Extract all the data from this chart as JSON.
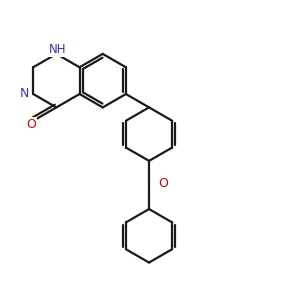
{
  "background_color": "#ffffff",
  "bond_color": "#1a1a1a",
  "nitrogen_color": "#3333bb",
  "oxygen_color": "#cc0000",
  "bond_width": 1.6,
  "dbo": 0.032,
  "figsize": [
    3.0,
    3.0
  ],
  "dpi": 100,
  "xlim": [
    0.0,
    3.0
  ],
  "ylim": [
    0.0,
    3.0
  ],
  "BL": 0.26
}
